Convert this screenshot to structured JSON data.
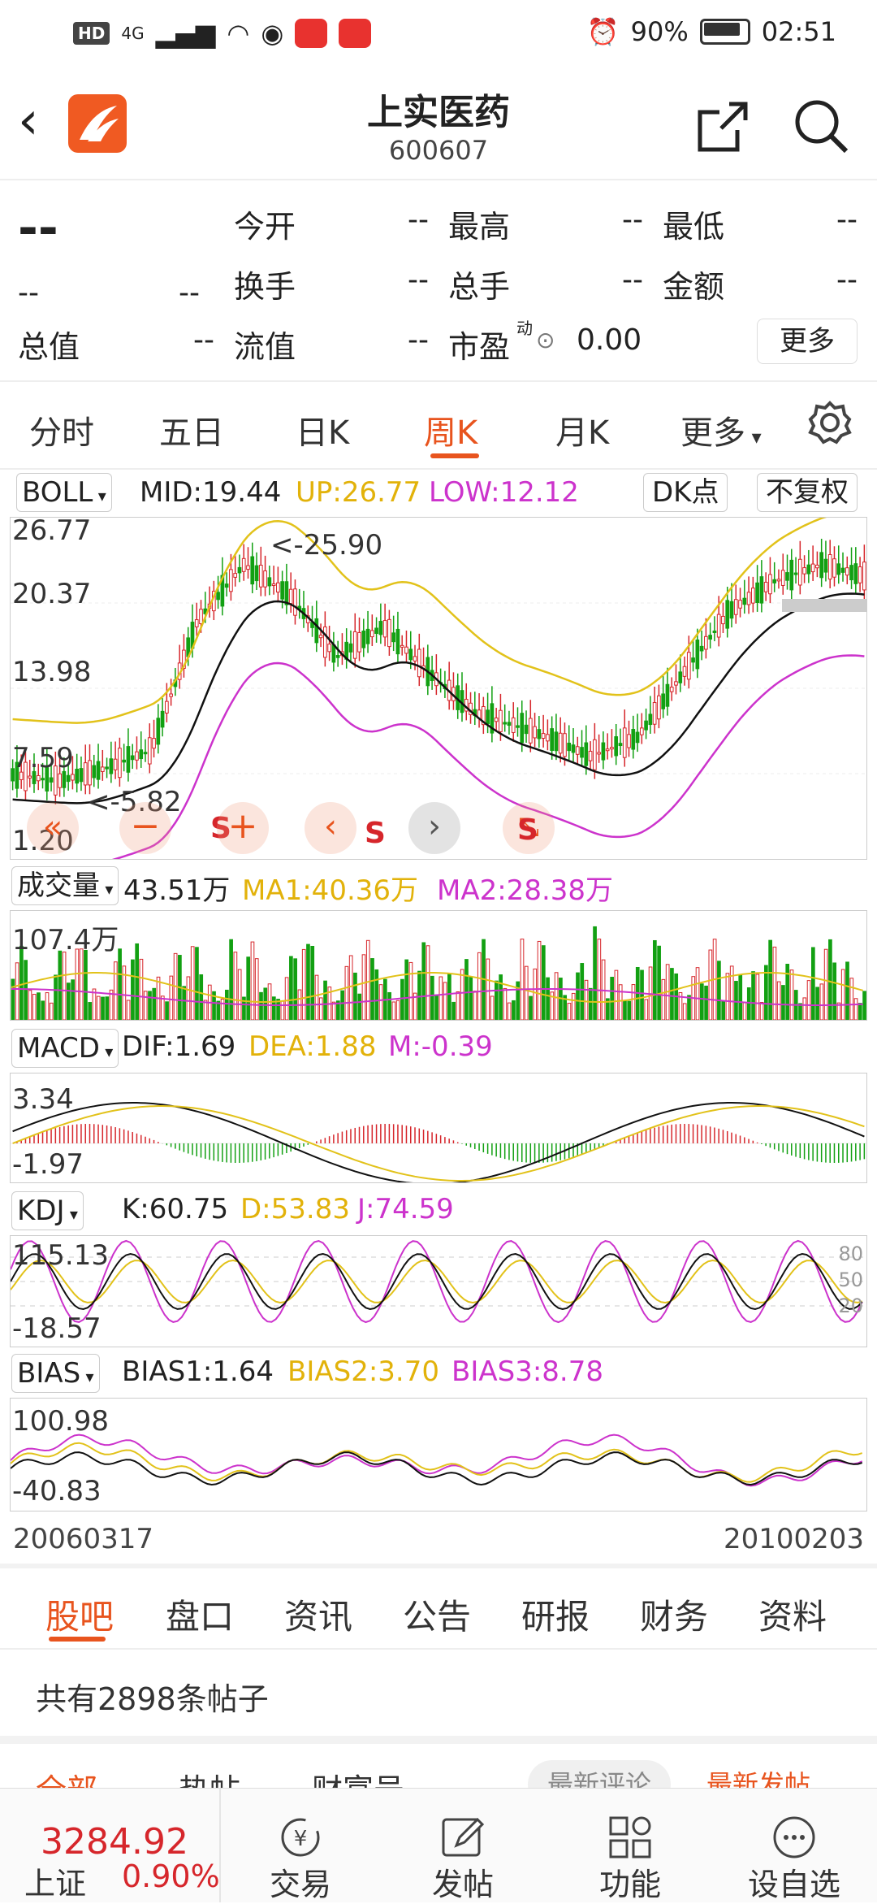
{
  "status": {
    "left_badges": [
      "HD",
      "4G"
    ],
    "battery": "90%",
    "time": "02:51"
  },
  "header": {
    "title": "上实医药",
    "code": "600607"
  },
  "quote": {
    "price": "--",
    "change": "--",
    "change_pct": "--",
    "fields": [
      {
        "label": "今开",
        "value": "--"
      },
      {
        "label": "最高",
        "value": "--"
      },
      {
        "label": "最低",
        "value": "--"
      },
      {
        "label": "换手",
        "value": "--"
      },
      {
        "label": "总手",
        "value": "--"
      },
      {
        "label": "金额",
        "value": "--"
      },
      {
        "label": "总值",
        "value": "--"
      },
      {
        "label": "流值",
        "value": "--"
      },
      {
        "label": "市盈",
        "value": "0.00"
      }
    ],
    "pe_tag": "动",
    "more_label": "更多"
  },
  "period_tabs": [
    "分时",
    "五日",
    "日K",
    "周K",
    "月K",
    "更多"
  ],
  "active_period": "周K",
  "boll": {
    "selector": "BOLL",
    "mid": "MID:19.44",
    "up": "UP:26.77",
    "low": "LOW:12.12",
    "dk_label": "DK点",
    "fuquan_label": "不复权",
    "y_labels": [
      "26.77",
      "20.37",
      "13.98",
      "7.59",
      "1.20"
    ],
    "max_note": "<-25.90",
    "min_note": "<-5.82",
    "signal": "S"
  },
  "volume": {
    "selector": "成交量",
    "value": "43.51万",
    "ma1": "MA1:40.36万",
    "ma2": "MA2:28.38万",
    "y_label": "107.4万"
  },
  "macd": {
    "selector": "MACD",
    "dif": "DIF:1.69",
    "dea": "DEA:1.88",
    "m": "M:-0.39",
    "y_top": "3.34",
    "y_bottom": "-1.97"
  },
  "kdj": {
    "selector": "KDJ",
    "k": "K:60.75",
    "d": "D:53.83",
    "j": "J:74.59",
    "y_top": "115.13",
    "y_bottom": "-18.57",
    "right_levels": [
      "80",
      "50",
      "20"
    ]
  },
  "bias": {
    "selector": "BIAS",
    "b1": "BIAS1:1.64",
    "b2": "BIAS2:3.70",
    "b3": "BIAS3:8.78",
    "y_top": "100.98",
    "y_bottom": "-40.83"
  },
  "date_range": {
    "start": "20060317",
    "end": "20100203"
  },
  "bottom_tabs": [
    "股吧",
    "盘口",
    "资讯",
    "公告",
    "研报",
    "财务",
    "资料"
  ],
  "active_bottom_tab": "股吧",
  "posts": {
    "count_text": "共有2898条帖子",
    "filters": [
      "全部",
      "热帖",
      "财富号"
    ],
    "sort_options": [
      "最新评论",
      "最新发帖"
    ]
  },
  "nav": {
    "index_value": "3284.92",
    "index_name": "上证",
    "index_change": "0.90%",
    "items": [
      "交易",
      "发帖",
      "功能",
      "设自选"
    ]
  },
  "colors": {
    "up": "#d6262b",
    "down": "#12a012",
    "accent": "#e8541e",
    "yellow": "#e2b20a",
    "magenta": "#cc33cc"
  }
}
